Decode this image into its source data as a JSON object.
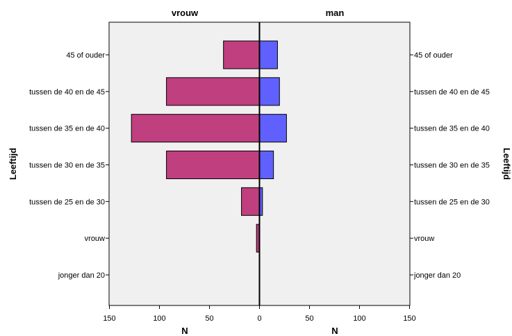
{
  "chart_data": {
    "type": "bar",
    "orientation": "horizontal",
    "layout": "population-pyramid",
    "panels": [
      {
        "name": "vrouw",
        "side": "left",
        "color": "#bf3f7f"
      },
      {
        "name": "man",
        "side": "right",
        "color": "#6060ff"
      }
    ],
    "categories": [
      "45 of ouder",
      "tussen de 40 en de 45",
      "tussen de 35 en de 40",
      "tussen de 30 en de 35",
      "tussen de 25 en de 30",
      "vrouw",
      "jonger dan 20"
    ],
    "series": [
      {
        "name": "vrouw",
        "values": [
          36,
          93,
          128,
          93,
          18,
          3,
          0
        ]
      },
      {
        "name": "man",
        "values": [
          18,
          20,
          27,
          14,
          3,
          0,
          0
        ]
      }
    ],
    "xlabel": "N",
    "ylabel": "Leeftijd",
    "xlim": [
      0,
      150
    ],
    "xticks": [
      0,
      50,
      100,
      150
    ],
    "background": "#f0f0f0",
    "grid": false
  }
}
